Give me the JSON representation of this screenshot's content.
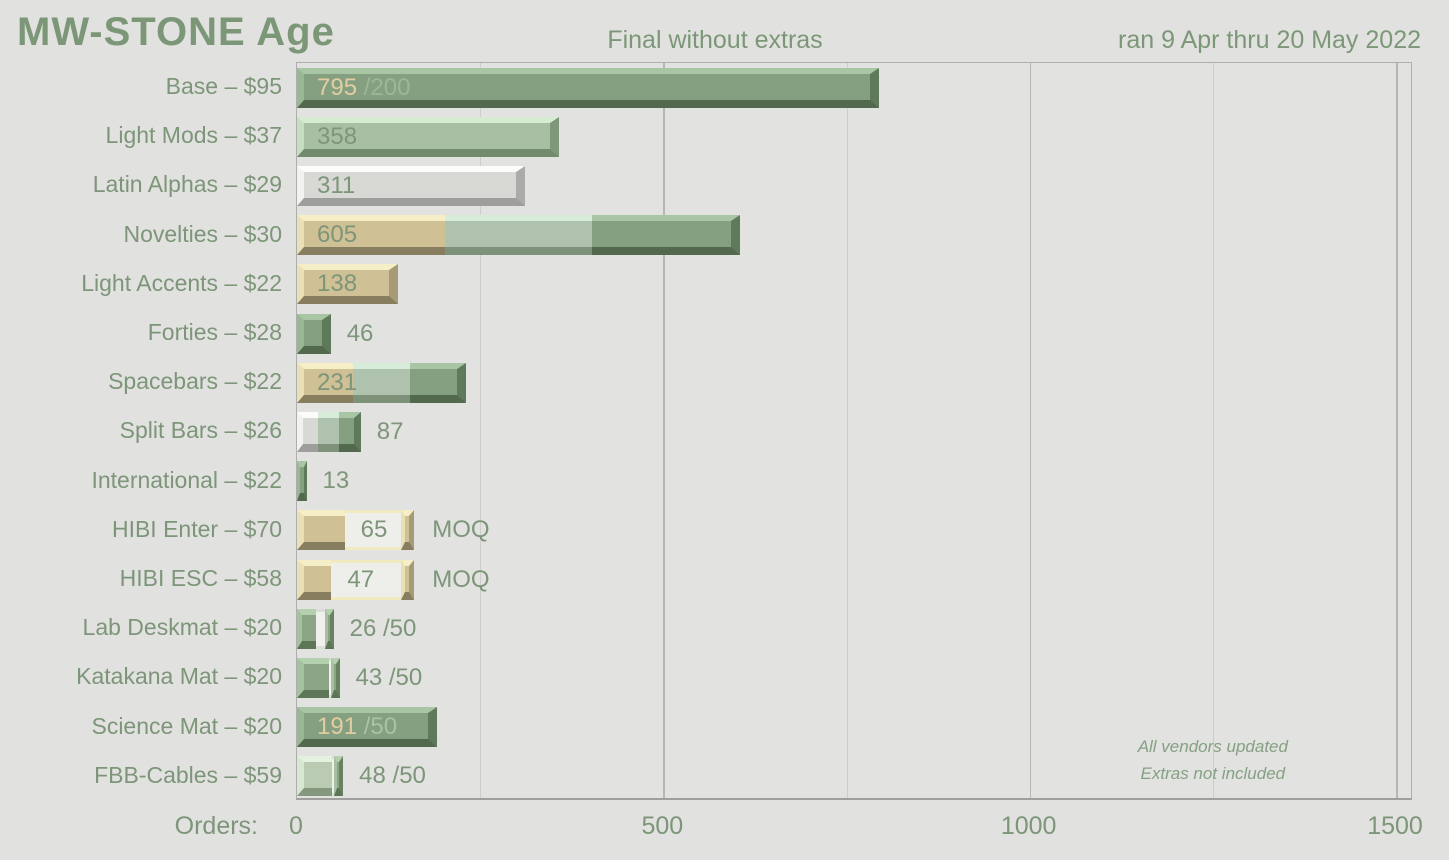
{
  "header": {
    "title": "MW-STONE Age",
    "subtitle": "Final without extras",
    "date_range": "ran 9 Apr thru 20 May 2022"
  },
  "notes": {
    "line1": "All vendors updated",
    "line2": "Extras not included"
  },
  "axis": {
    "label": "Orders:",
    "ticks": [
      {
        "value": 0,
        "label": "0"
      },
      {
        "value": 500,
        "label": "500"
      },
      {
        "value": 1000,
        "label": "1000"
      },
      {
        "value": 1500,
        "label": "1500"
      }
    ],
    "minor_gridlines": [
      250,
      750,
      1250
    ],
    "major_gridlines": [
      500,
      1000,
      1500
    ]
  },
  "colors": {
    "background": "#e1e1df",
    "heading_green": "#7c9778",
    "palette": {
      "green": {
        "face": "#85a081",
        "top": "#a9c6a4",
        "left": "#9ab794",
        "bottom": "#52694e",
        "right": "#5f7a5a"
      },
      "sage": {
        "face": "#a9bfa4",
        "top": "#d6ebd1",
        "left": "#c6ddc0",
        "bottom": "#728b6d",
        "right": "#7f987a"
      },
      "graysage": {
        "face": "#afc2ae",
        "top": "#d7ecd9",
        "left": "#cfe4d0",
        "bottom": "#7e9279",
        "right": "#879b82"
      },
      "white": {
        "face": "#d8d8d5",
        "top": "#fcfcfb",
        "left": "#f2f2f0",
        "bottom": "#9e9e9c",
        "right": "#ababa9"
      },
      "tan": {
        "face": "#cfc095",
        "top": "#f5eec6",
        "left": "#e9e0b5",
        "bottom": "#877e5f",
        "right": "#a59b76"
      },
      "green2": {
        "face": "#8ca586",
        "top": "#b4d0ae",
        "left": "#a5c29e",
        "bottom": "#5c7657",
        "right": "#68825f"
      },
      "lightsage": {
        "face": "#b9cbb3",
        "top": "#e3f2df",
        "left": "#d6e8d1",
        "bottom": "#83987d",
        "right": "#8fa489"
      }
    },
    "hollow": {
      "cream": {
        "bg": "#eeeeea",
        "border": "#f1e9bf"
      },
      "white": {
        "bg": "#f0f0ee",
        "border": "#dcdcd8"
      }
    },
    "text": {
      "green": "#7d9579",
      "cream": "#e2cda2",
      "muted": "#9db69a",
      "light": "#a9c2a5"
    }
  },
  "chart_data": {
    "type": "bar",
    "orientation": "horizontal",
    "title": "MW-STONE Age",
    "subtitle": "Final without extras",
    "xlabel": "Orders",
    "xlim": [
      0,
      1527
    ],
    "grid": true,
    "items": [
      {
        "label": "Base – $95",
        "value": 795,
        "value_text": "795",
        "suffix": "/200",
        "suffix_color": "muted",
        "text_position": "inside",
        "text_color": "cream",
        "segments": [
          {
            "palette": "green",
            "units": 795
          }
        ]
      },
      {
        "label": "Light Mods – $37",
        "value": 358,
        "value_text": "358",
        "text_position": "inside",
        "text_color": "green",
        "segments": [
          {
            "palette": "sage",
            "units": 358
          }
        ]
      },
      {
        "label": "Latin Alphas – $29",
        "value": 311,
        "value_text": "311",
        "text_position": "inside",
        "text_color": "green",
        "segments": [
          {
            "palette": "white",
            "units": 311
          }
        ]
      },
      {
        "label": "Novelties – $30",
        "value": 605,
        "value_text": "605",
        "text_position": "inside",
        "text_color": "green",
        "segments": [
          {
            "palette": "tan",
            "units": 202
          },
          {
            "palette": "graysage",
            "units": 201
          },
          {
            "palette": "green",
            "units": 202
          }
        ]
      },
      {
        "label": "Light Accents – $22",
        "value": 138,
        "value_text": "138",
        "text_position": "inside",
        "text_color": "green",
        "segments": [
          {
            "palette": "tan",
            "units": 138
          }
        ]
      },
      {
        "label": "Forties – $28",
        "value": 46,
        "value_text": "46",
        "text_position": "outside",
        "text_color": "green",
        "segments": [
          {
            "palette": "green",
            "units": 46
          }
        ]
      },
      {
        "label": "Spacebars – $22",
        "value": 231,
        "value_text": "231",
        "text_position": "inside",
        "text_color": "green",
        "segments": [
          {
            "palette": "tan",
            "units": 77
          },
          {
            "palette": "graysage",
            "units": 77
          },
          {
            "palette": "green",
            "units": 77
          }
        ]
      },
      {
        "label": "Split Bars – $26",
        "value": 87,
        "value_text": "87",
        "text_position": "outside",
        "text_color": "green",
        "segments": [
          {
            "palette": "white",
            "units": 29
          },
          {
            "palette": "graysage",
            "units": 29
          },
          {
            "palette": "green",
            "units": 29
          }
        ]
      },
      {
        "label": "International – $22",
        "value": 13,
        "value_text": "13",
        "text_position": "outside",
        "text_color": "green",
        "segments": [
          {
            "palette": "green",
            "units": 13
          }
        ]
      },
      {
        "label": "HIBI Enter – $70",
        "value": 65,
        "value_text": "65",
        "text_position": "hollow",
        "text_color": "green",
        "after_text": "MOQ",
        "segments": [
          {
            "palette": "tan",
            "units": 65
          }
        ],
        "target": {
          "units": 160,
          "palette": "tan",
          "hollow": "cream",
          "label": "MOQ"
        }
      },
      {
        "label": "HIBI ESC – $58",
        "value": 47,
        "value_text": "47",
        "text_position": "hollow",
        "text_color": "green",
        "after_text": "MOQ",
        "segments": [
          {
            "palette": "tan",
            "units": 47
          }
        ],
        "target": {
          "units": 160,
          "palette": "tan",
          "hollow": "cream",
          "label": "MOQ"
        }
      },
      {
        "label": "Lab Deskmat – $20",
        "value": 26,
        "value_text": "26",
        "suffix": "/50",
        "text_position": "outside",
        "text_color": "green",
        "segments": [
          {
            "palette": "green2",
            "units": 26
          }
        ],
        "target": {
          "units": 50,
          "palette": "green2",
          "hollow": "white"
        }
      },
      {
        "label": "Katakana Mat – $20",
        "value": 43,
        "value_text": "43",
        "suffix": "/50",
        "text_position": "outside",
        "text_color": "green",
        "segments": [
          {
            "palette": "green2",
            "units": 43
          }
        ],
        "target": {
          "units": 50,
          "palette": "green2",
          "hollow": "white"
        }
      },
      {
        "label": "Science Mat – $20",
        "value": 191,
        "value_text": "191",
        "suffix": "/50",
        "suffix_color": "light",
        "text_position": "inside",
        "text_color": "cream",
        "segments": [
          {
            "palette": "green",
            "units": 191
          }
        ]
      },
      {
        "label": "FBB-Cables – $59",
        "value": 48,
        "value_text": "48",
        "suffix": "/50",
        "text_position": "outside",
        "text_color": "green",
        "segments": [
          {
            "palette": "lightsage",
            "units": 48
          }
        ],
        "target": {
          "units": 50,
          "palette": "green2",
          "hollow": "white"
        }
      }
    ]
  }
}
